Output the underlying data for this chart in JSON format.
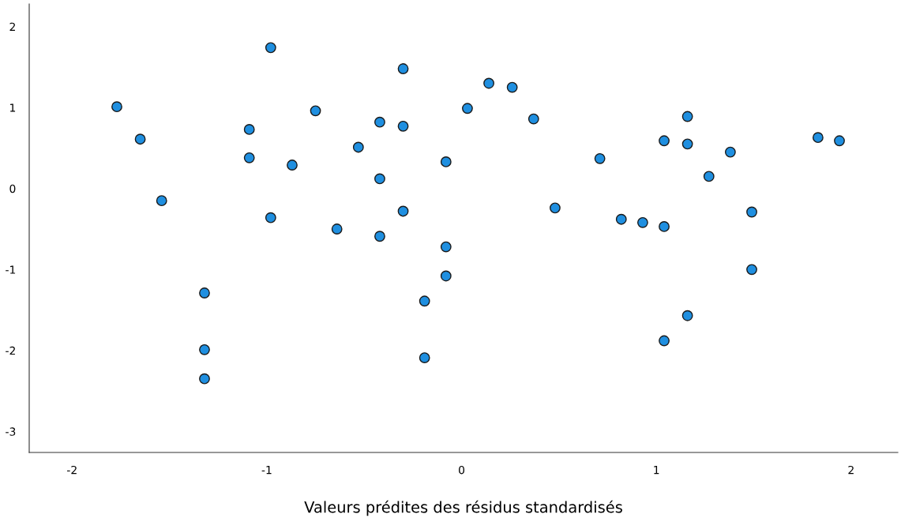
{
  "chart_data": {
    "type": "scatter",
    "xlabel": "Valeurs prédites des résidus standardisés",
    "x": [
      -1.77,
      -1.65,
      -1.54,
      -1.32,
      -1.32,
      -1.32,
      -1.09,
      -1.09,
      -0.98,
      -0.98,
      -0.87,
      -0.75,
      -0.64,
      -0.53,
      -0.42,
      -0.42,
      -0.42,
      -0.3,
      -0.3,
      -0.3,
      -0.19,
      -0.19,
      -0.08,
      -0.08,
      -0.08,
      0.03,
      0.14,
      0.26,
      0.37,
      0.48,
      0.71,
      0.82,
      0.93,
      1.04,
      1.04,
      1.04,
      1.16,
      1.16,
      1.16,
      1.27,
      1.38,
      1.49,
      1.49,
      1.83,
      1.94
    ],
    "values": [
      1.01,
      0.61,
      -0.15,
      -1.29,
      -1.99,
      -2.35,
      0.73,
      0.38,
      1.74,
      -0.36,
      0.29,
      0.96,
      -0.5,
      0.51,
      0.82,
      0.12,
      -0.59,
      1.48,
      0.77,
      -0.28,
      -2.09,
      -1.39,
      0.33,
      -0.72,
      -1.08,
      0.99,
      1.3,
      1.25,
      0.86,
      -0.24,
      0.37,
      -0.38,
      -0.42,
      0.59,
      -0.47,
      -1.88,
      0.89,
      0.55,
      -1.57,
      0.15,
      0.45,
      -0.29,
      -1.0,
      0.63,
      0.59
    ],
    "color": "#1f8fe0",
    "marker": "circle",
    "xlim": [
      -2.22,
      2.24
    ],
    "ylim": [
      -3.26,
      2.28
    ],
    "xticks": [
      -2,
      -1,
      0,
      1,
      2
    ],
    "yticks": [
      -3,
      -2,
      -1,
      0,
      1,
      2
    ],
    "grid": false
  }
}
